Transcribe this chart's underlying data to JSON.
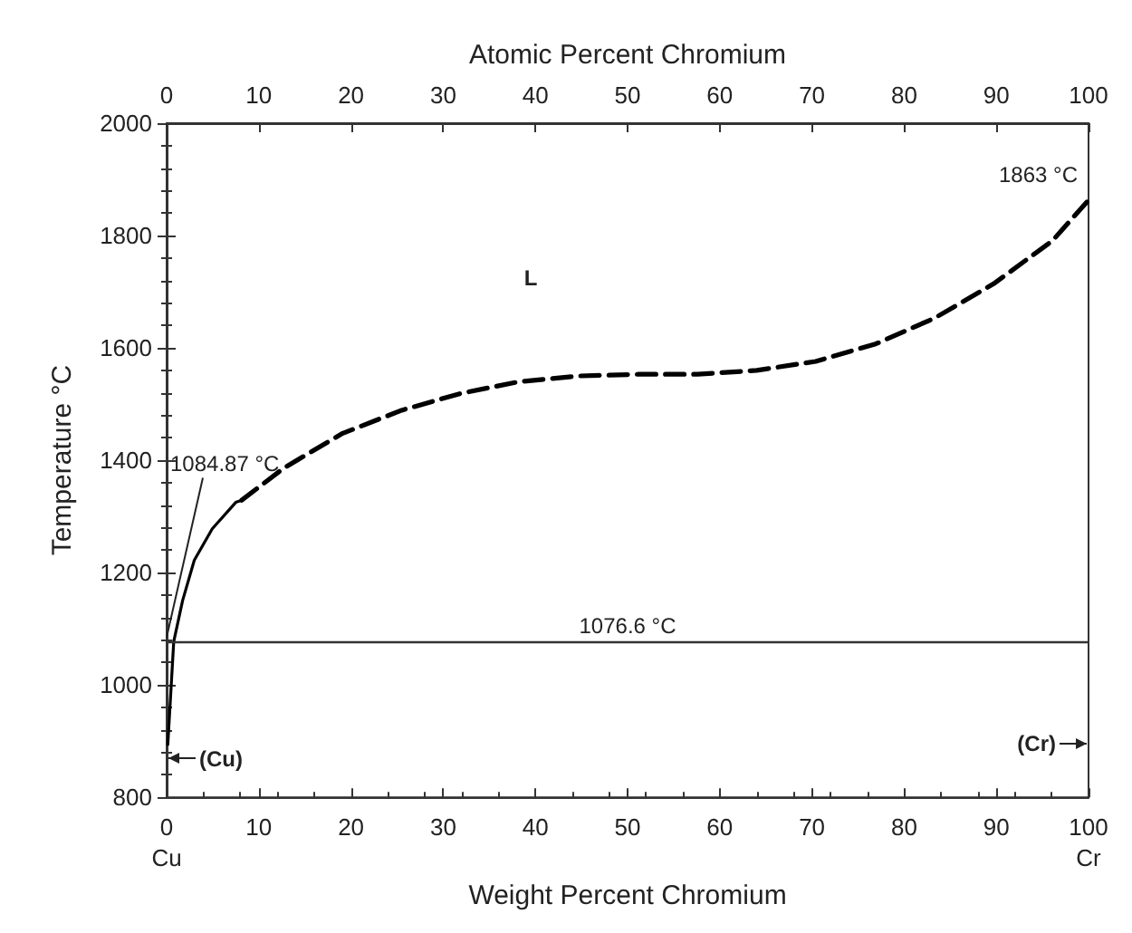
{
  "chart_data": {
    "type": "line",
    "xlabel": "Weight Percent Chromium",
    "ylabel": "Temperature °C",
    "x2label": "Atomic Percent Chromium",
    "xlim": [
      0,
      100
    ],
    "ylim": [
      800,
      2000
    ],
    "xticks": [
      {
        "value": 0,
        "label": "0\nCu"
      },
      10,
      20,
      30,
      40,
      50,
      60,
      70,
      80,
      90,
      {
        "value": 100,
        "label": "100\nCr"
      }
    ],
    "yticks": [
      800,
      1000,
      1200,
      1400,
      1600,
      1800,
      2000
    ],
    "x2lim": [
      0,
      100
    ],
    "x2ticks": [
      0,
      10,
      20,
      30,
      40,
      50,
      60,
      70,
      80,
      90,
      100
    ],
    "series": [
      {
        "color": "#000000",
        "line_style": "solid",
        "x": [
          0.13,
          0.77,
          1.73,
          3.0,
          4.95,
          7.5,
          8.15
        ],
        "values": [
          894,
          1077,
          1150,
          1222,
          1278,
          1325,
          1329
        ]
      },
      {
        "color": "#000000",
        "line_style": "dashed",
        "x": [
          8.15,
          12.7,
          19.1,
          25.5,
          31.9,
          38.3,
          44.7,
          51.2,
          57.6,
          64.0,
          70.4,
          76.9,
          83.3,
          89.7,
          96.1,
          100
        ],
        "values": [
          1329,
          1386,
          1448,
          1489,
          1519,
          1540,
          1550,
          1553,
          1553,
          1560,
          1576,
          1607,
          1653,
          1714,
          1791,
          1863
        ]
      }
    ],
    "ref_lines": [
      {
        "axis": "y",
        "value": 1076.6,
        "label": "1076.6 °C",
        "color": "#333333"
      }
    ],
    "annotations": [
      {
        "text": "1084.87 °C",
        "x": 0,
        "y": 1084.87
      },
      {
        "text": "1863 °C",
        "x": 100,
        "y": 1863
      },
      "L",
      "(Cu)",
      "(Cr)"
    ],
    "grid": false,
    "marker": "none"
  }
}
